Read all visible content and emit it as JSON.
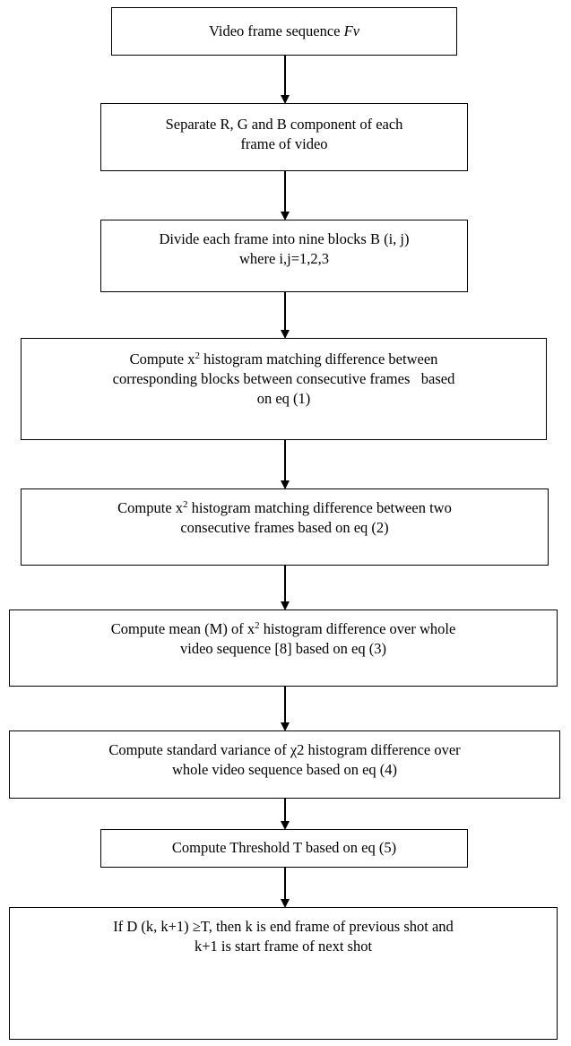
{
  "nodes": [
    {
      "lines": [
        [
          "Video frame sequence ",
          "Fv"
        ]
      ]
    },
    {
      "lines": [
        [
          "Separate R, G and B component of each"
        ],
        [
          "frame of video"
        ]
      ]
    },
    {
      "lines": [
        [
          "Divide each frame into nine blocks B (i, j)"
        ],
        [
          "where i,j=1,2,3"
        ]
      ]
    },
    {
      "lines": [
        [
          "Compute x",
          "2",
          " histogram matching difference between"
        ],
        [
          "corresponding blocks between consecutive frames   based"
        ],
        [
          "on eq (1)"
        ]
      ]
    },
    {
      "lines": [
        [
          "Compute x",
          "2",
          " histogram matching difference between two"
        ],
        [
          "consecutive frames based on eq (2)"
        ]
      ]
    },
    {
      "lines": [
        [
          "Compute mean (M) of x",
          "2",
          " histogram difference over whole"
        ],
        [
          "video sequence [8] based on eq (3)"
        ]
      ]
    },
    {
      "lines": [
        [
          "Compute standard variance of χ2 histogram difference over"
        ],
        [
          "whole video sequence based on eq (4)"
        ]
      ]
    },
    {
      "lines": [
        [
          "Compute Threshold T based on eq (5)"
        ]
      ]
    },
    {
      "lines": [
        [
          "If D (k, k+1) ≥T, then k is end frame of previous shot and"
        ],
        [
          "k+1 is start frame of next shot"
        ]
      ]
    }
  ]
}
